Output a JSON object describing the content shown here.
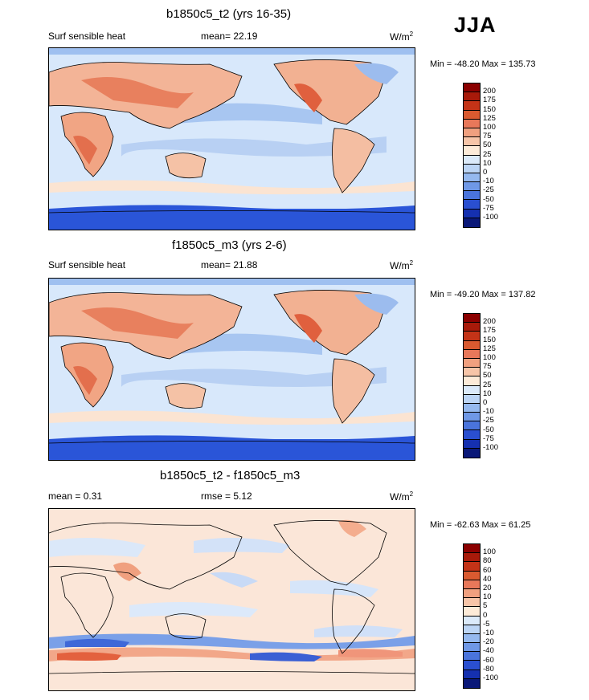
{
  "season": "JJA",
  "units_base": "W/m",
  "units_exp": "2",
  "panels": [
    {
      "title": "b1850c5_t2 (yrs 16-35)",
      "left_label": "Surf sensible heat",
      "mean_label": "mean=  22.19",
      "units": "W/m",
      "units_exp": "2",
      "minmax": "Min = -48.20 Max = 135.73",
      "colorbar": {
        "levels": [
          "200",
          "175",
          "150",
          "125",
          "100",
          "75",
          "50",
          "25",
          "10",
          "0",
          "-10",
          "-25",
          "-50",
          "-75",
          "-100"
        ],
        "colors": [
          "#8b0000",
          "#a81a0a",
          "#c43317",
          "#da5a30",
          "#e8785a",
          "#f0a07f",
          "#f7c5a8",
          "#fdebd8",
          "#dbeafa",
          "#bcd5f5",
          "#95b9ef",
          "#6f98e6",
          "#4a74dc",
          "#2a4fd0",
          "#1530b0",
          "#0a1878"
        ]
      }
    },
    {
      "title": "f1850c5_m3 (yrs 2-6)",
      "left_label": "Surf sensible heat",
      "mean_label": "mean=  21.88",
      "units": "W/m",
      "units_exp": "2",
      "minmax": "Min = -49.20 Max = 137.82",
      "colorbar": {
        "levels": [
          "200",
          "175",
          "150",
          "125",
          "100",
          "75",
          "50",
          "25",
          "10",
          "0",
          "-10",
          "-25",
          "-50",
          "-75",
          "-100"
        ],
        "colors": [
          "#8b0000",
          "#a81a0a",
          "#c43317",
          "#da5a30",
          "#e8785a",
          "#f0a07f",
          "#f7c5a8",
          "#fdebd8",
          "#dbeafa",
          "#bcd5f5",
          "#95b9ef",
          "#6f98e6",
          "#4a74dc",
          "#2a4fd0",
          "#1530b0",
          "#0a1878"
        ]
      }
    },
    {
      "title": "b1850c5_t2 - f1850c5_m3",
      "left_label": "mean =   0.31",
      "mean_label": "rmse =   5.12",
      "units": "W/m",
      "units_exp": "2",
      "minmax": "Min = -62.63 Max =  61.25",
      "colorbar": {
        "levels": [
          "100",
          "80",
          "60",
          "40",
          "20",
          "10",
          "5",
          "0",
          "-5",
          "-10",
          "-20",
          "-40",
          "-60",
          "-80",
          "-100"
        ],
        "colors": [
          "#8b0000",
          "#a81a0a",
          "#c43317",
          "#da5a30",
          "#e8785a",
          "#f0a07f",
          "#f7c5a8",
          "#fdebd8",
          "#dbeafa",
          "#bcd5f5",
          "#95b9ef",
          "#6f98e6",
          "#4a74dc",
          "#2a4fd0",
          "#1530b0",
          "#0a1878"
        ]
      }
    }
  ],
  "chart_data": [
    {
      "type": "heatmap",
      "title": "b1850c5_t2 (yrs 16-35)",
      "variable": "Surf sensible heat",
      "mean": 22.19,
      "units": "W/m2",
      "min": -48.2,
      "max": 135.73,
      "contour_levels": [
        -100,
        -75,
        -50,
        -25,
        -10,
        0,
        10,
        25,
        50,
        75,
        100,
        125,
        150,
        175,
        200
      ]
    },
    {
      "type": "heatmap",
      "title": "f1850c5_m3 (yrs 2-6)",
      "variable": "Surf sensible heat",
      "mean": 21.88,
      "units": "W/m2",
      "min": -49.2,
      "max": 137.82,
      "contour_levels": [
        -100,
        -75,
        -50,
        -25,
        -10,
        0,
        10,
        25,
        50,
        75,
        100,
        125,
        150,
        175,
        200
      ]
    },
    {
      "type": "heatmap",
      "title": "b1850c5_t2 - f1850c5_m3",
      "mean": 0.31,
      "rmse": 5.12,
      "units": "W/m2",
      "min": -62.63,
      "max": 61.25,
      "contour_levels": [
        -100,
        -80,
        -60,
        -40,
        -20,
        -10,
        -5,
        0,
        5,
        10,
        20,
        40,
        60,
        80,
        100
      ]
    }
  ]
}
